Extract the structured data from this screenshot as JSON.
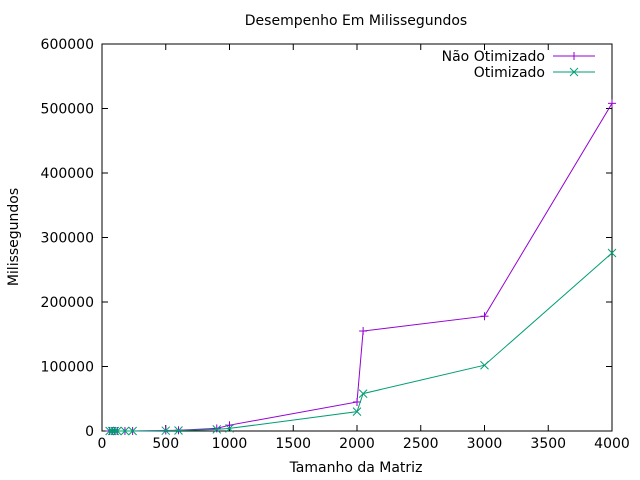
{
  "chart_data": {
    "type": "line",
    "title": "Desempenho Em Milissegundos",
    "xlabel": "Tamanho da Matriz",
    "ylabel": "Milissegundos",
    "xlim": [
      0,
      4000
    ],
    "ylim": [
      0,
      600000
    ],
    "x_ticks": [
      0,
      500,
      1000,
      1500,
      2000,
      2500,
      3000,
      3500,
      4000
    ],
    "y_ticks": [
      0,
      100000,
      200000,
      300000,
      400000,
      500000,
      600000
    ],
    "grid": false,
    "legend_position": "top-right",
    "series": [
      {
        "name": "Não Otimizado",
        "color": "#9400d3",
        "marker": "plus",
        "x": [
          60,
          80,
          100,
          120,
          180,
          240,
          500,
          600,
          900,
          1000,
          2000,
          2048,
          3000,
          4000
        ],
        "y": [
          0,
          0,
          0,
          0,
          0,
          0,
          800,
          1200,
          4000,
          9000,
          45000,
          155000,
          178000,
          508000
        ]
      },
      {
        "name": "Otimizado",
        "color": "#009e73",
        "marker": "cross",
        "x": [
          60,
          80,
          100,
          120,
          180,
          240,
          500,
          600,
          900,
          1000,
          2000,
          2048,
          3000,
          4000
        ],
        "y": [
          0,
          0,
          0,
          0,
          0,
          0,
          500,
          800,
          2500,
          4000,
          30000,
          58000,
          102000,
          276000
        ]
      }
    ]
  }
}
